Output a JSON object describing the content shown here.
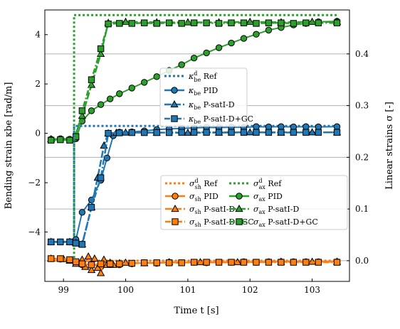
{
  "chart_data": {
    "type": "line",
    "xlabel": "Time t [s]",
    "ylabel_left": "Bending strain κbe [rad/m]",
    "ylabel_right": "Linear strains σ [-]",
    "xlim": [
      98.7,
      103.6
    ],
    "ylim_left": [
      -6.0,
      5.0
    ],
    "ylim_right": [
      -0.04,
      0.485
    ],
    "x_ticks": [
      99,
      100,
      101,
      102,
      103
    ],
    "y_ticks_left": [
      -4,
      -2,
      0,
      2,
      4
    ],
    "y_ticks_right": [
      0.0,
      0.1,
      0.2,
      0.3,
      0.4
    ],
    "grid": "horizontal gridlines at right-axis ticks",
    "legend_top": {
      "placement": "center",
      "entries": [
        {
          "label": "κbe d Ref",
          "sym": "κ",
          "sub": "be",
          "sup": "d",
          "rest": " Ref",
          "color": "#1f77b4",
          "dash": "3,3",
          "marker": "none"
        },
        {
          "label": "κbe PID",
          "sym": "κ",
          "sub": "be",
          "sup": "",
          "rest": " PID",
          "color": "#1f77b4",
          "dash": "",
          "marker": "circle"
        },
        {
          "label": "κbe P-satI-D",
          "sym": "κ",
          "sub": "be",
          "sup": "",
          "rest": " P-satI-D",
          "color": "#1f77b4",
          "dash": "10,3",
          "marker": "triangle"
        },
        {
          "label": "κbe P-satI-D+GC",
          "sym": "κ",
          "sub": "be",
          "sup": "",
          "rest": " P-satI-D+GC",
          "color": "#1f77b4",
          "dash": "8,3,2,3",
          "marker": "square"
        }
      ]
    },
    "legend_bottom": {
      "placement": "center-right",
      "entries": [
        {
          "label": "σsh d Ref",
          "sym": "σ",
          "sub": "sh",
          "sup": "d",
          "rest": " Ref",
          "color": "#ff7f0e",
          "dash": "3,3",
          "marker": "none"
        },
        {
          "label": "σax d Ref",
          "sym": "σ",
          "sub": "ax",
          "sup": "d",
          "rest": " Ref",
          "color": "#2ca02c",
          "dash": "3,3",
          "marker": "none"
        },
        {
          "label": "σsh PID",
          "sym": "σ",
          "sub": "sh",
          "sup": "",
          "rest": " PID",
          "color": "#ff7f0e",
          "dash": "",
          "marker": "circle"
        },
        {
          "label": "σax PID",
          "sym": "σ",
          "sub": "ax",
          "sup": "",
          "rest": " PID",
          "color": "#2ca02c",
          "dash": "",
          "marker": "circle"
        },
        {
          "label": "σsh P-satI-D",
          "sym": "σ",
          "sub": "sh",
          "sup": "",
          "rest": " P-satI-D",
          "color": "#ff7f0e",
          "dash": "10,3",
          "marker": "triangle"
        },
        {
          "label": "σax P-satI-D",
          "sym": "σ",
          "sub": "ax",
          "sup": "",
          "rest": " P-satI-D",
          "color": "#2ca02c",
          "dash": "10,3",
          "marker": "triangle"
        },
        {
          "label": "σsh P-satI-D+GC",
          "sym": "σ",
          "sub": "sh",
          "sup": "",
          "rest": " P-satI-D+GC",
          "color": "#ff7f0e",
          "dash": "8,3,2,3",
          "marker": "square"
        },
        {
          "label": "σax P-satI-D+GC",
          "sym": "σ",
          "sub": "ax",
          "sup": "",
          "rest": " P-satI-D+GC",
          "color": "#2ca02c",
          "dash": "8,3,2,3",
          "marker": "square"
        }
      ]
    },
    "series": [
      {
        "name": "σax d Ref",
        "axis": "right",
        "color": "#2ca02c",
        "dash": "3,3",
        "width": 3,
        "marker": "none",
        "x": [
          98.8,
          99.17,
          99.17,
          103.4
        ],
        "y": [
          0.0,
          0.0,
          0.475,
          0.475
        ]
      },
      {
        "name": "σax PID",
        "axis": "right",
        "color": "#2ca02c",
        "dash": "",
        "width": 2,
        "marker": "circle",
        "x": [
          98.8,
          98.95,
          99.1,
          99.2,
          99.3,
          99.45,
          99.6,
          99.75,
          99.9,
          100.1,
          100.3,
          100.5,
          100.7,
          100.9,
          101.1,
          101.3,
          101.5,
          101.7,
          101.9,
          102.1,
          102.3,
          102.5,
          102.7,
          102.9,
          103.1,
          103.4
        ],
        "y": [
          0.235,
          0.236,
          0.235,
          0.236,
          0.27,
          0.29,
          0.302,
          0.313,
          0.323,
          0.334,
          0.345,
          0.356,
          0.368,
          0.379,
          0.392,
          0.402,
          0.412,
          0.421,
          0.43,
          0.438,
          0.446,
          0.451,
          0.456,
          0.459,
          0.462,
          0.463
        ]
      },
      {
        "name": "σax P-satI-D",
        "axis": "right",
        "color": "#2ca02c",
        "dash": "10,3",
        "width": 2.5,
        "marker": "triangle",
        "x": [
          98.8,
          99.17,
          99.3,
          99.45,
          99.6,
          99.72,
          100.0,
          100.5,
          101.0,
          101.5,
          102.0,
          102.5,
          103.0,
          103.4
        ],
        "y": [
          0.235,
          0.236,
          0.28,
          0.34,
          0.4,
          0.46,
          0.462,
          0.461,
          0.461,
          0.461,
          0.462,
          0.461,
          0.462,
          0.462
        ]
      },
      {
        "name": "σax P-satI-D+GC",
        "axis": "right",
        "color": "#2ca02c",
        "dash": "8,3,2,3",
        "width": 2.5,
        "marker": "square",
        "x": [
          98.8,
          98.95,
          99.1,
          99.2,
          99.3,
          99.45,
          99.6,
          99.72,
          99.9,
          100.1,
          100.3,
          100.5,
          100.7,
          100.9,
          101.1,
          101.3,
          101.5,
          101.7,
          101.9,
          102.1,
          102.3,
          102.5,
          102.7,
          102.9,
          103.1,
          103.4
        ],
        "y": [
          0.233,
          0.234,
          0.233,
          0.24,
          0.29,
          0.35,
          0.41,
          0.458,
          0.459,
          0.459,
          0.46,
          0.459,
          0.46,
          0.459,
          0.46,
          0.46,
          0.459,
          0.46,
          0.46,
          0.459,
          0.46,
          0.46,
          0.459,
          0.46,
          0.46,
          0.46
        ]
      },
      {
        "name": "κbe d Ref",
        "axis": "left",
        "color": "#1f77b4",
        "dash": "3,3",
        "width": 3,
        "marker": "none",
        "x": [
          98.8,
          99.17,
          99.17,
          103.4
        ],
        "y": [
          -4.4,
          -4.4,
          0.3,
          0.3
        ]
      },
      {
        "name": "κbe PID",
        "axis": "left",
        "color": "#1f77b4",
        "dash": "",
        "width": 2,
        "marker": "circle",
        "x": [
          98.8,
          98.95,
          99.1,
          99.2,
          99.3,
          99.45,
          99.6,
          99.7,
          99.8,
          99.9,
          100.1,
          100.3,
          100.5,
          100.7,
          100.9,
          101.1,
          101.3,
          101.5,
          101.7,
          101.9,
          102.1,
          102.3,
          102.5,
          102.7,
          102.9,
          103.1,
          103.4
        ],
        "y": [
          -4.4,
          -4.4,
          -4.4,
          -4.3,
          -3.2,
          -2.7,
          -1.9,
          -1.0,
          -0.1,
          0.05,
          0.06,
          0.1,
          0.15,
          0.18,
          0.2,
          0.22,
          0.24,
          0.23,
          0.25,
          0.24,
          0.27,
          0.26,
          0.27,
          0.26,
          0.27,
          0.26,
          0.27
        ]
      },
      {
        "name": "κbe P-satI-D",
        "axis": "left",
        "color": "#1f77b4",
        "dash": "10,3",
        "width": 2.5,
        "marker": "triangle",
        "x": [
          98.8,
          99.1,
          99.2,
          99.3,
          99.45,
          99.55,
          99.65,
          99.72,
          99.85,
          100.0,
          100.5,
          101.0,
          101.5,
          102.0,
          102.5,
          103.0,
          103.4
        ],
        "y": [
          -4.4,
          -4.4,
          -4.45,
          -4.5,
          -3.0,
          -1.8,
          -0.5,
          0.0,
          0.02,
          0.03,
          0.03,
          0.02,
          0.03,
          0.04,
          0.03,
          0.04,
          0.04
        ]
      },
      {
        "name": "κbe P-satI-D+GC",
        "axis": "left",
        "color": "#1f77b4",
        "dash": "8,3,2,3",
        "width": 2.5,
        "marker": "square",
        "x": [
          98.8,
          98.95,
          99.1,
          99.2,
          99.3,
          99.45,
          99.6,
          99.72,
          99.9,
          100.1,
          100.3,
          100.5,
          100.7,
          100.9,
          101.1,
          101.3,
          101.5,
          101.7,
          101.9,
          102.1,
          102.3,
          102.5,
          102.7,
          102.9,
          103.1,
          103.4
        ],
        "y": [
          -4.4,
          -4.4,
          -4.4,
          -4.45,
          -4.5,
          -3.0,
          -1.8,
          0.0,
          0.02,
          0.03,
          0.03,
          0.03,
          0.03,
          0.04,
          0.04,
          0.04,
          0.04,
          0.04,
          0.04,
          0.04,
          0.04,
          0.04,
          0.04,
          0.04,
          0.04,
          0.04
        ]
      },
      {
        "name": "σsh d Ref",
        "axis": "right",
        "color": "#ff7f0e",
        "dash": "3,3",
        "width": 3,
        "marker": "none",
        "x": [
          98.8,
          103.4
        ],
        "y": [
          0.0,
          0.0
        ]
      },
      {
        "name": "σsh PID",
        "axis": "right",
        "color": "#ff7f0e",
        "dash": "",
        "width": 2,
        "marker": "circle",
        "x": [
          98.8,
          98.95,
          99.1,
          99.2,
          99.3,
          99.45,
          99.6,
          99.75,
          99.9,
          100.1,
          100.3,
          100.5,
          100.7,
          100.9,
          101.1,
          101.3,
          101.5,
          101.7,
          101.9,
          102.1,
          102.3,
          102.5,
          102.7,
          102.9,
          103.1,
          103.4
        ],
        "y": [
          0.004,
          0.003,
          0.001,
          -0.004,
          -0.008,
          -0.006,
          -0.012,
          -0.005,
          -0.008,
          -0.006,
          -0.004,
          -0.005,
          -0.003,
          -0.004,
          -0.003,
          -0.004,
          -0.003,
          -0.003,
          -0.002,
          -0.003,
          -0.002,
          -0.002,
          -0.002,
          -0.002,
          -0.002,
          -0.002
        ]
      },
      {
        "name": "σsh P-satI-D",
        "axis": "right",
        "color": "#ff7f0e",
        "dash": "10,3",
        "width": 2.5,
        "marker": "triangle",
        "x": [
          98.8,
          99.0,
          99.1,
          99.2,
          99.3,
          99.35,
          99.4,
          99.45,
          99.5,
          99.55,
          99.6,
          99.65,
          99.7,
          99.75,
          99.8,
          99.9,
          100.0,
          100.3,
          100.7,
          101.2,
          101.8,
          102.5,
          103.0,
          103.4
        ],
        "y": [
          0.004,
          0.003,
          0.0,
          -0.006,
          0.002,
          -0.012,
          0.008,
          -0.018,
          0.004,
          -0.014,
          -0.024,
          0.002,
          -0.008,
          -0.004,
          -0.008,
          -0.005,
          -0.004,
          -0.005,
          -0.003,
          -0.003,
          -0.003,
          -0.002,
          -0.002,
          -0.002
        ]
      },
      {
        "name": "σsh P-satI-D+GC",
        "axis": "right",
        "color": "#ff7f0e",
        "dash": "8,3,2,3",
        "width": 2.5,
        "marker": "square",
        "x": [
          98.8,
          98.95,
          99.1,
          99.2,
          99.3,
          99.45,
          99.6,
          99.75,
          99.9,
          100.1,
          100.3,
          100.5,
          100.7,
          100.9,
          101.1,
          101.3,
          101.5,
          101.7,
          101.9,
          102.1,
          102.3,
          102.5,
          102.7,
          102.9,
          103.1,
          103.4
        ],
        "y": [
          0.004,
          0.004,
          0.002,
          -0.002,
          -0.006,
          -0.008,
          -0.006,
          -0.006,
          -0.006,
          -0.005,
          -0.004,
          -0.004,
          -0.004,
          -0.004,
          -0.003,
          -0.003,
          -0.003,
          -0.003,
          -0.003,
          -0.003,
          -0.003,
          -0.003,
          -0.003,
          -0.003,
          -0.003,
          -0.003
        ]
      }
    ]
  }
}
